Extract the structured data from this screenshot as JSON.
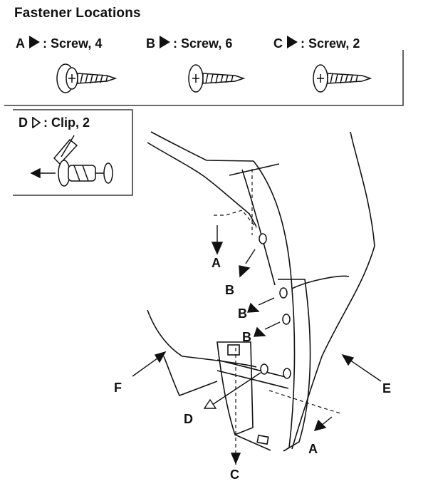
{
  "title": "Fastener Locations",
  "fasteners": [
    {
      "letter": "A",
      "marker": "solid",
      "label": ": Screw, 4"
    },
    {
      "letter": "B",
      "marker": "solid",
      "label": ": Screw, 6"
    },
    {
      "letter": "C",
      "marker": "solid",
      "label": ": Screw, 2"
    },
    {
      "letter": "D",
      "marker": "open",
      "label": ": Clip, 2"
    }
  ],
  "callouts": {
    "a_upper": "A",
    "b_1": "B",
    "b_2": "B",
    "b_3": "B",
    "f": "F",
    "e": "E",
    "d": "D",
    "c": "C",
    "a_lower": "A"
  },
  "colors": {
    "ink": "#111111",
    "background": "#ffffff"
  }
}
